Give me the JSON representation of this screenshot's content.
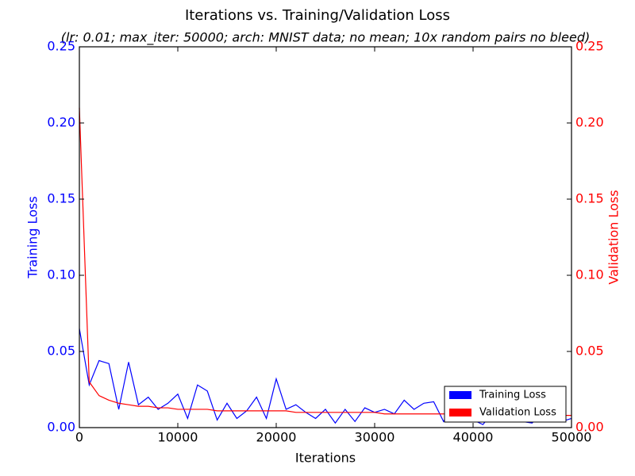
{
  "chart_data": {
    "type": "line",
    "title": "Iterations vs. Training/Validation Loss",
    "subtitle": "(lr: 0.01; max_iter: 50000; arch: MNIST data; no mean; 10x random pairs no bleed)",
    "xlabel": "Iterations",
    "ylabel": "Training Loss",
    "y2label": "Validation Loss",
    "xlim": [
      0,
      50000
    ],
    "xticks": [
      0,
      10000,
      20000,
      30000,
      40000,
      50000
    ],
    "ylim": [
      0,
      0.25
    ],
    "yticks": [
      {
        "value": 0,
        "label": "0.00"
      },
      0.05,
      {
        "value": 0.1,
        "label": "0.10"
      },
      0.15,
      {
        "value": 0.2,
        "label": "0.20"
      },
      0.25
    ],
    "y2lim": [
      0,
      0.25
    ],
    "y2ticks": [
      {
        "value": 0,
        "label": "0.00"
      },
      0.05,
      {
        "value": 0.1,
        "label": "0.10"
      },
      0.15,
      {
        "value": 0.2,
        "label": "0.20"
      },
      0.25
    ],
    "legend": "lower right",
    "x": [
      0,
      1000,
      2000,
      3000,
      4000,
      5000,
      6000,
      7000,
      8000,
      9000,
      10000,
      11000,
      12000,
      13000,
      14000,
      15000,
      16000,
      17000,
      18000,
      19000,
      20000,
      21000,
      22000,
      23000,
      24000,
      25000,
      26000,
      27000,
      28000,
      29000,
      30000,
      31000,
      32000,
      33000,
      34000,
      35000,
      36000,
      37000,
      38000,
      39000,
      40000,
      41000,
      42000,
      43000,
      44000,
      45000,
      46000,
      47000,
      48000,
      49000,
      50000
    ],
    "series": [
      {
        "name": "Training Loss",
        "color": "#0000ff",
        "axis": "y",
        "values": [
          0.065,
          0.028,
          0.044,
          0.042,
          0.012,
          0.043,
          0.015,
          0.02,
          0.012,
          0.016,
          0.022,
          0.006,
          0.028,
          0.024,
          0.005,
          0.016,
          0.006,
          0.011,
          0.02,
          0.006,
          0.032,
          0.012,
          0.015,
          0.01,
          0.006,
          0.012,
          0.003,
          0.012,
          0.004,
          0.013,
          0.01,
          0.012,
          0.009,
          0.018,
          0.012,
          0.016,
          0.017,
          0.004,
          0.014,
          0.009,
          0.005,
          0.002,
          0.01,
          0.009,
          0.012,
          0.004,
          0.003,
          0.01,
          0.008,
          0.004,
          0.006
        ]
      },
      {
        "name": "Validation Loss",
        "color": "#ff0000",
        "axis": "y2",
        "values": [
          0.21,
          0.03,
          0.021,
          0.018,
          0.016,
          0.015,
          0.014,
          0.014,
          0.013,
          0.013,
          0.012,
          0.012,
          0.012,
          0.012,
          0.011,
          0.011,
          0.011,
          0.011,
          0.011,
          0.011,
          0.011,
          0.011,
          0.01,
          0.01,
          0.01,
          0.01,
          0.01,
          0.01,
          0.01,
          0.01,
          0.01,
          0.009,
          0.009,
          0.009,
          0.009,
          0.009,
          0.009,
          0.009,
          0.009,
          0.009,
          0.009,
          0.009,
          0.009,
          0.009,
          0.009,
          0.008,
          0.008,
          0.008,
          0.008,
          0.008,
          0.008
        ]
      }
    ]
  }
}
